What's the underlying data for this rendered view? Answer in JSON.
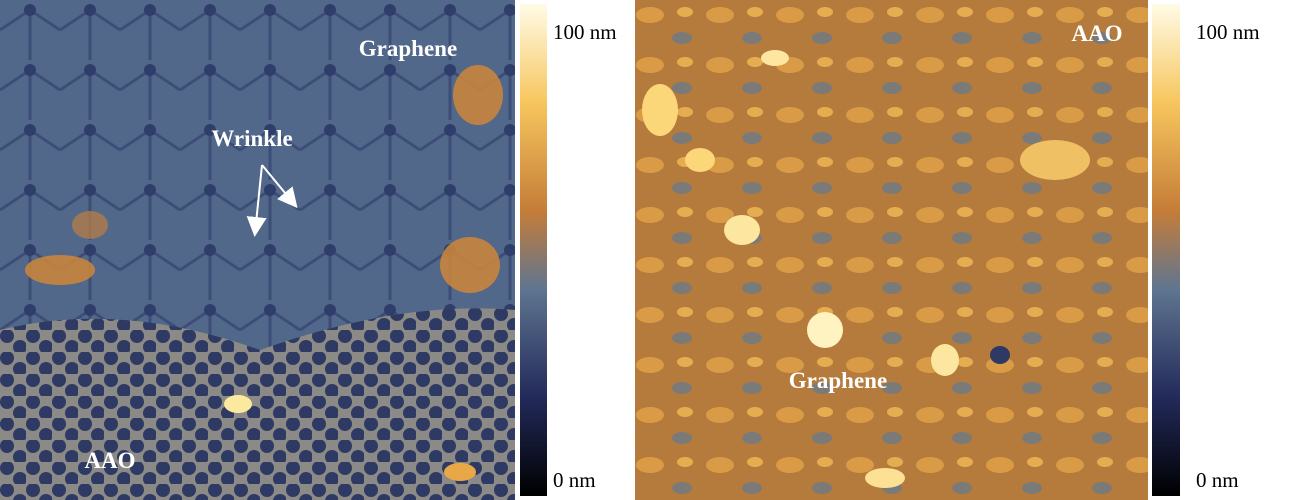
{
  "panels": [
    {
      "labels": [
        "Graphene",
        "Wrinkle",
        "AAO"
      ],
      "colorbar": {
        "max": "100 nm",
        "min": "0 nm"
      }
    },
    {
      "labels": [
        "AAO",
        "Graphene"
      ],
      "colorbar": {
        "max": "100 nm",
        "min": "0 nm"
      }
    }
  ]
}
